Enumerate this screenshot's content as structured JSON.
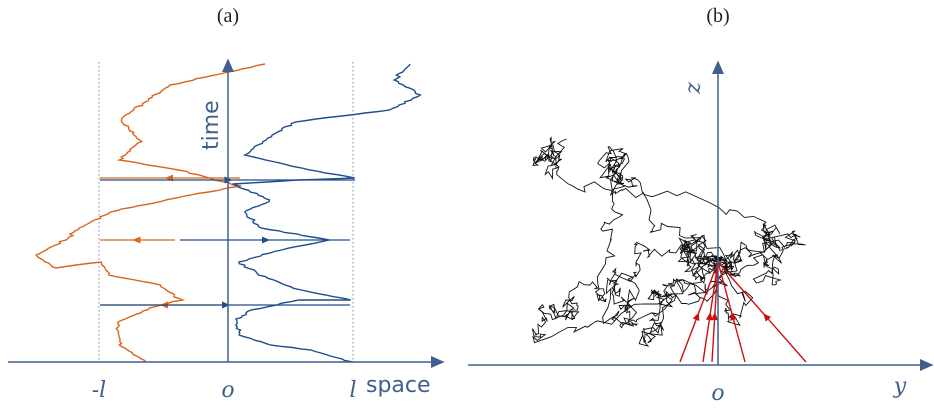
{
  "panel_a": {
    "label": "(a)",
    "time_label": "time",
    "space_label": "space",
    "tick_left": "-l",
    "tick_origin": "o",
    "tick_right": "l"
  },
  "panel_b": {
    "label": "(b)",
    "z_label": "z",
    "y_label": "y",
    "origin_label": "o"
  },
  "colors": {
    "axis": "#3f5f8f",
    "walk_orange": "#d9651a",
    "walk_blue": "#1f4e8c",
    "walk_black": "#111111",
    "arrow_red": "#cc1010"
  }
}
